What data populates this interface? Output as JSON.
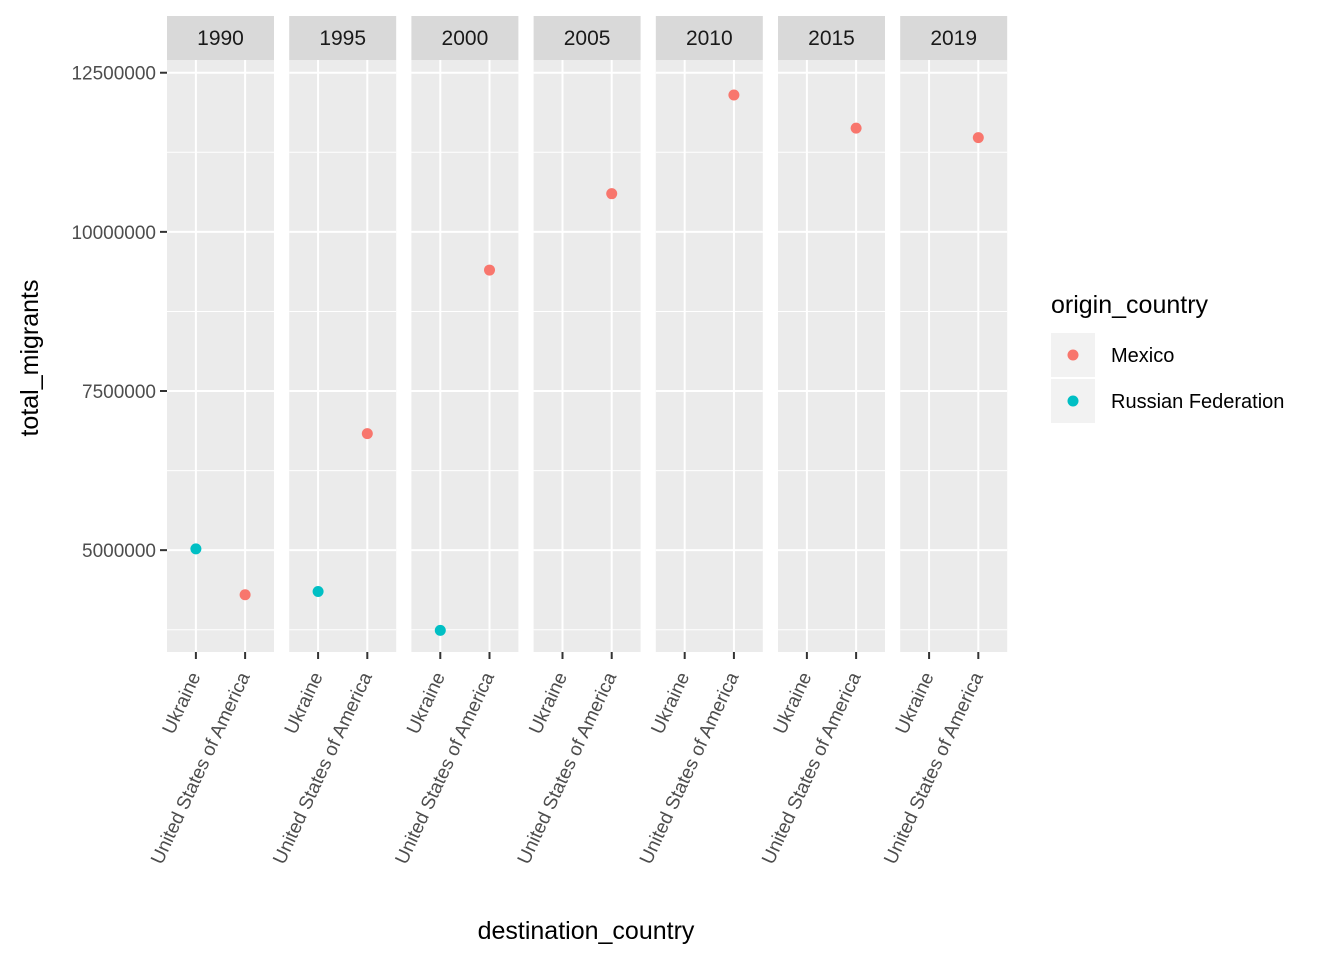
{
  "chart_data": {
    "type": "scatter",
    "facet_by": "year",
    "facets": [
      "1990",
      "1995",
      "2000",
      "2005",
      "2010",
      "2015",
      "2019"
    ],
    "x_categories": [
      "Ukraine",
      "United States of America"
    ],
    "xlabel": "destination_country",
    "ylabel": "total_migrants",
    "ylim": [
      3400000,
      12700000
    ],
    "y_ticks": [
      5000000,
      7500000,
      10000000,
      12500000
    ],
    "y_tick_labels": [
      "5000000",
      "7500000",
      "10000000",
      "12500000"
    ],
    "grid": true,
    "legend": {
      "title": "origin_country",
      "position": "right",
      "entries": [
        "Mexico",
        "Russian Federation"
      ]
    },
    "colors": {
      "Mexico": "#F8766D",
      "Russian Federation": "#00BFC4"
    },
    "series": [
      {
        "name": "Mexico",
        "points": [
          {
            "facet": "1990",
            "x": "United States of America",
            "y": 4300000
          },
          {
            "facet": "1995",
            "x": "United States of America",
            "y": 6830000
          },
          {
            "facet": "2000",
            "x": "United States of America",
            "y": 9400000
          },
          {
            "facet": "2005",
            "x": "United States of America",
            "y": 10600000
          },
          {
            "facet": "2010",
            "x": "United States of America",
            "y": 12150000
          },
          {
            "facet": "2015",
            "x": "United States of America",
            "y": 11630000
          },
          {
            "facet": "2019",
            "x": "United States of America",
            "y": 11480000
          }
        ]
      },
      {
        "name": "Russian Federation",
        "points": [
          {
            "facet": "1990",
            "x": "Ukraine",
            "y": 5020000
          },
          {
            "facet": "1995",
            "x": "Ukraine",
            "y": 4350000
          },
          {
            "facet": "2000",
            "x": "Ukraine",
            "y": 3740000
          }
        ]
      }
    ]
  }
}
